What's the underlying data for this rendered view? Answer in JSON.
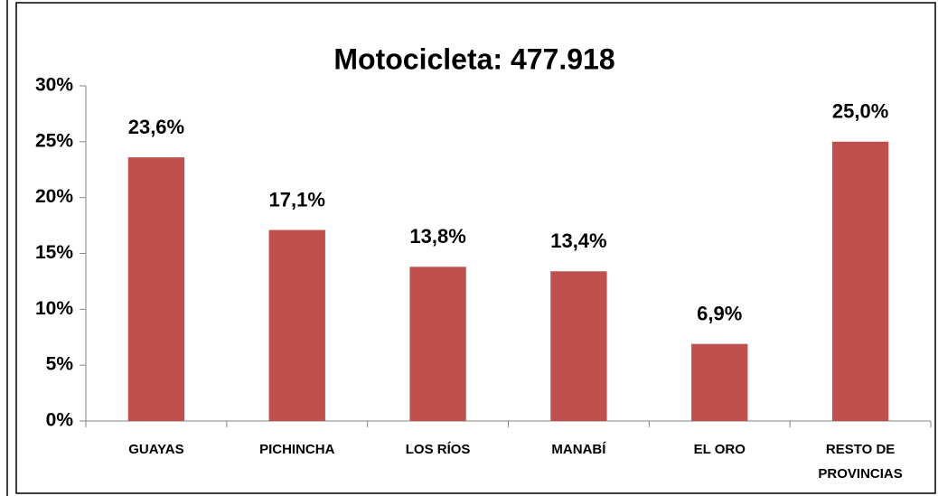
{
  "chart_data": {
    "type": "bar",
    "title": "Motocicleta: 477.918",
    "categories": [
      "GUAYAS",
      "PICHINCHA",
      "LOS RÍOS",
      "MANABÍ",
      "EL ORO",
      "RESTO DE PROVINCIAS"
    ],
    "values": [
      23.6,
      17.1,
      13.8,
      13.4,
      6.9,
      25.0
    ],
    "value_labels": [
      "23,6%",
      "17,1%",
      "13,8%",
      "13,4%",
      "6,9%",
      "25,0%"
    ],
    "color": "#c0504d",
    "ylim": [
      0,
      30
    ],
    "yticks": [
      {
        "value": 0,
        "label": "0%"
      },
      {
        "value": 5,
        "label": "5%"
      },
      {
        "value": 10,
        "label": "10%"
      },
      {
        "value": 15,
        "label": "15%"
      },
      {
        "value": 20,
        "label": "20%"
      },
      {
        "value": 25,
        "label": "25%"
      },
      {
        "value": 30,
        "label": "30%"
      }
    ],
    "grid": false
  }
}
